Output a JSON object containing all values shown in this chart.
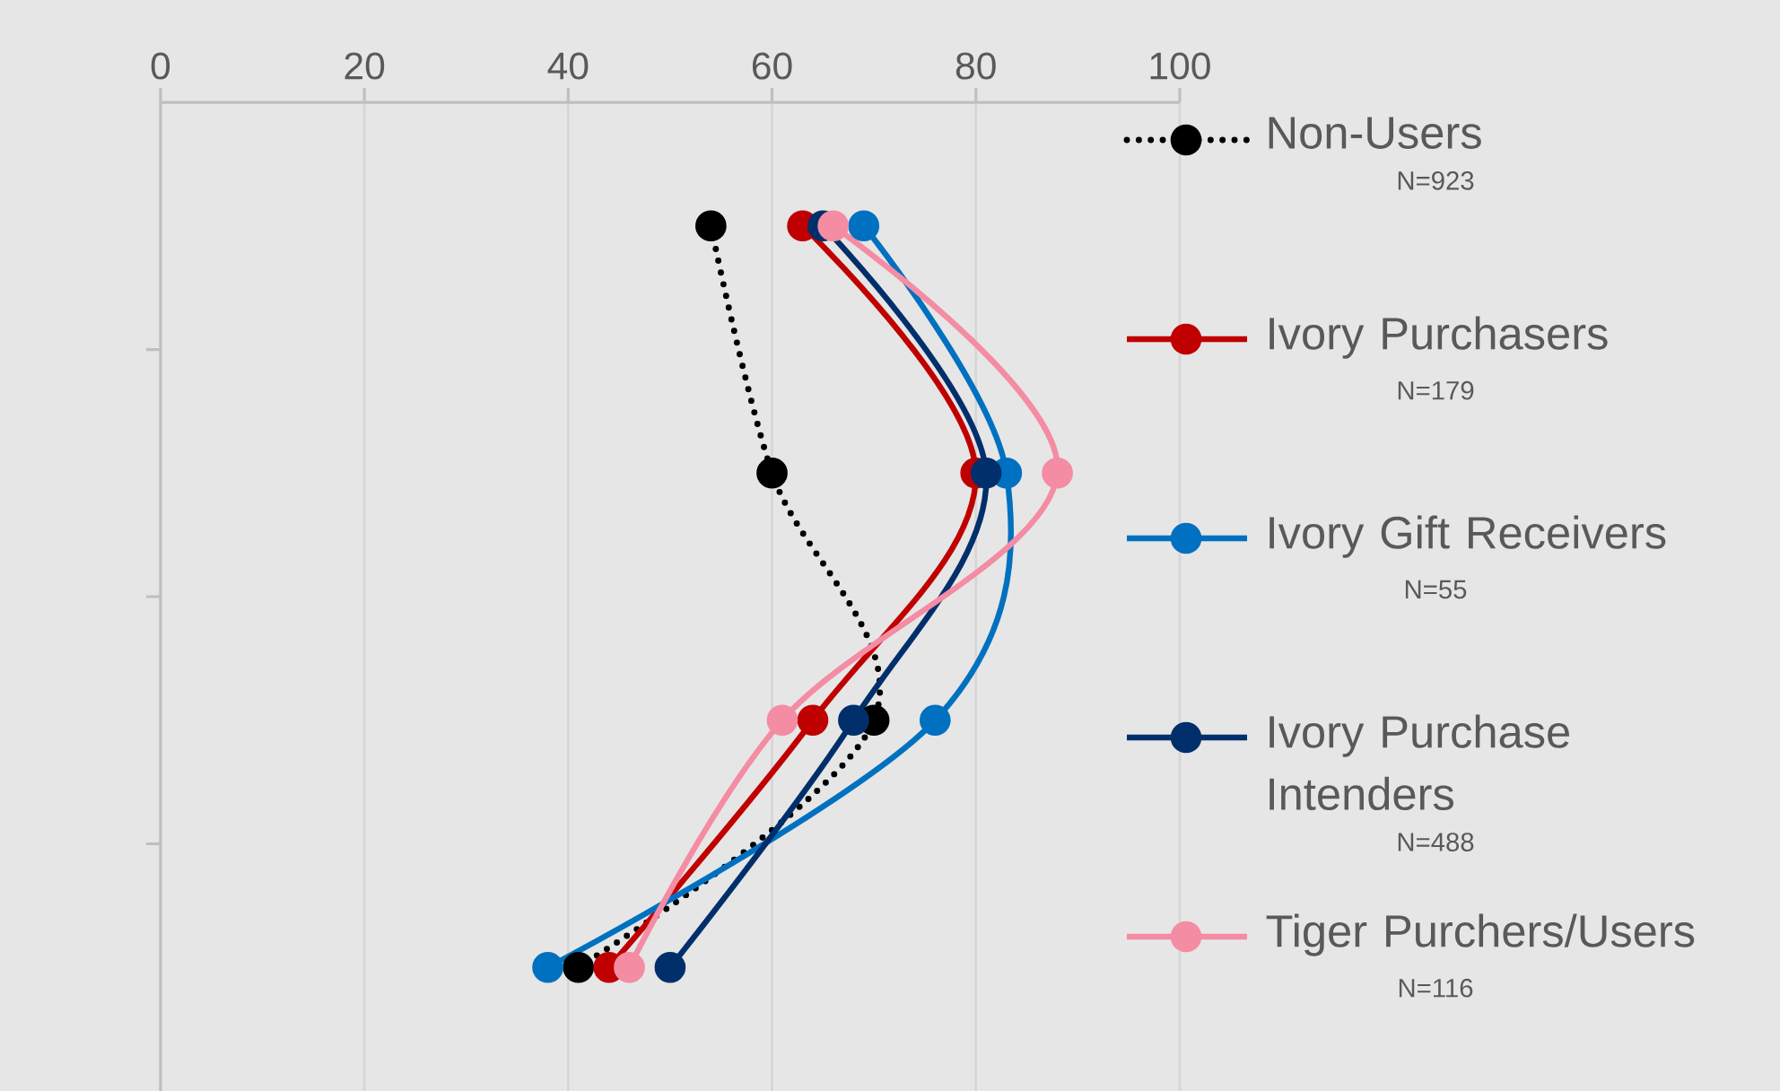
{
  "chart_data": {
    "type": "line",
    "orientation": "horizontal",
    "categories": [
      null,
      null,
      null,
      null
    ],
    "xlim": [
      0,
      100
    ],
    "xticks": [
      0,
      20,
      40,
      60,
      80,
      100
    ],
    "grid": "x",
    "legend": "right",
    "series": [
      {
        "name": "Non-Users",
        "color": "#000000",
        "line_style": "dotted",
        "marker": "circle",
        "values": [
          54,
          60,
          70,
          41
        ]
      },
      {
        "name": "Ivory Purchasers",
        "color": "#c00000",
        "line_style": "solid",
        "marker": "circle",
        "values": [
          63,
          80,
          64,
          44
        ]
      },
      {
        "name": "Ivory Gift Receivers",
        "color": "#0070c0",
        "line_style": "solid",
        "marker": "circle",
        "values": [
          69,
          83,
          76,
          38
        ]
      },
      {
        "name": "Ivory Purchase Intenders",
        "color": "#002f6c",
        "line_style": "solid",
        "marker": "circle",
        "values": [
          65,
          81,
          68,
          50
        ]
      },
      {
        "name": "Tiger Purchers/Users",
        "color": "#f48ca3",
        "line_style": "solid",
        "marker": "circle",
        "values": [
          66,
          88,
          61,
          46
        ]
      }
    ],
    "annotations": [
      "N=923",
      "N=179",
      "N=55",
      "N=488",
      "N=116"
    ]
  }
}
